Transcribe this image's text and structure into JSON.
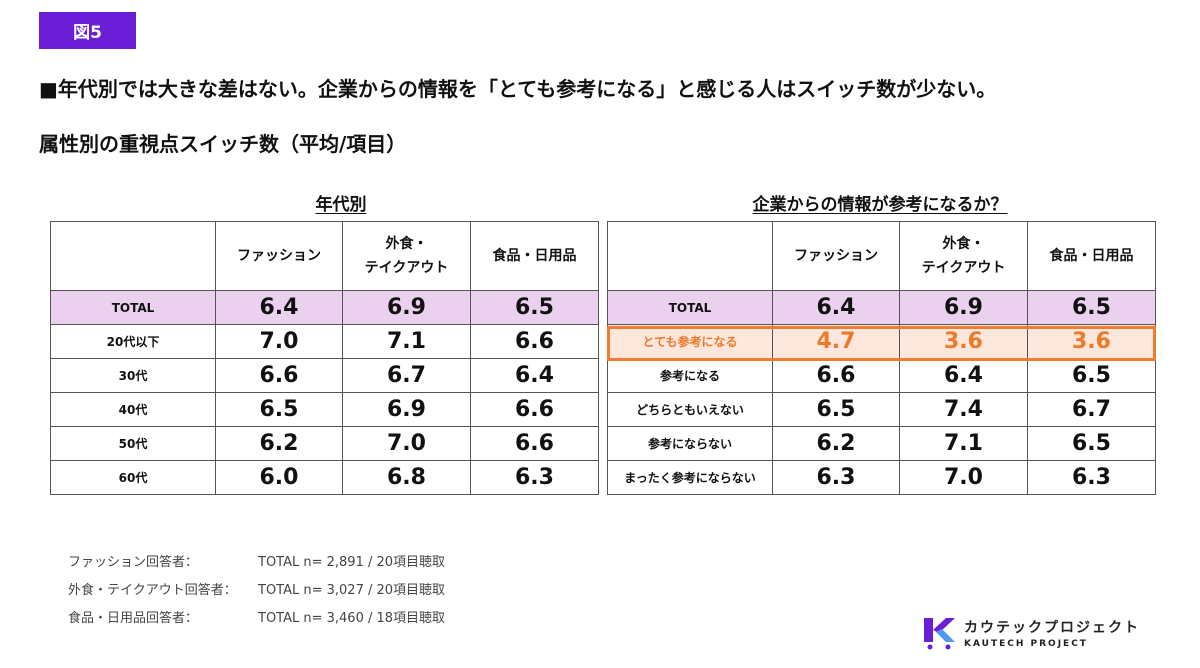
{
  "figure_label": "図5",
  "headline": "■年代別では大きな差はない。企業からの情報を「とても参考になる」と感じる人はスイッチ数が少ない。",
  "subtitle": "属性別の重視点スイッチ数（平均/項目）",
  "age_table": {
    "title": "年代別",
    "columns": [
      "",
      "ファッション",
      "外食・\nテイクアウト",
      "食品・日用品"
    ],
    "rows": [
      {
        "label": "TOTAL",
        "values": [
          "6.4",
          "6.9",
          "6.5"
        ]
      },
      {
        "label": "20代以下",
        "values": [
          "7.0",
          "7.1",
          "6.6"
        ]
      },
      {
        "label": "30代",
        "values": [
          "6.6",
          "6.7",
          "6.4"
        ]
      },
      {
        "label": "40代",
        "values": [
          "6.5",
          "6.9",
          "6.6"
        ]
      },
      {
        "label": "50代",
        "values": [
          "6.2",
          "7.0",
          "6.6"
        ]
      },
      {
        "label": "60代",
        "values": [
          "6.0",
          "6.8",
          "6.3"
        ]
      }
    ]
  },
  "info_table": {
    "title": "企業からの情報が参考になるか？",
    "columns": [
      "",
      "ファッション",
      "外食・\nテイクアウト",
      "食品・日用品"
    ],
    "rows": [
      {
        "label": "TOTAL",
        "values": [
          "6.4",
          "6.9",
          "6.5"
        ]
      },
      {
        "label": "とても参考になる",
        "values": [
          "4.7",
          "3.6",
          "3.6"
        ]
      },
      {
        "label": "参考になる",
        "values": [
          "6.6",
          "6.4",
          "6.5"
        ]
      },
      {
        "label": "どちらともいえない",
        "values": [
          "6.5",
          "7.4",
          "6.7"
        ]
      },
      {
        "label": "参考にならない",
        "values": [
          "6.2",
          "7.1",
          "6.5"
        ]
      },
      {
        "label": "まったく参考にならない",
        "values": [
          "6.3",
          "7.0",
          "6.3"
        ]
      }
    ]
  },
  "notes": [
    {
      "label": "ファッション回答者：",
      "value": "TOTAL n= 2,891 / 20項目聴取"
    },
    {
      "label": "外食・テイクアウト回答者：",
      "value": "TOTAL n= 3,027 / 20項目聴取"
    },
    {
      "label": "食品・日用品回答者：",
      "value": "TOTAL n= 3,460 / 18項目聴取"
    }
  ],
  "logo": {
    "name": "カウテックプロジェクト",
    "sub": "KAUTECH PROJECT"
  },
  "colors": {
    "badge": "#6a1fd6",
    "total_row": "#ecd0ef",
    "highlight_fill": "#fde7dd",
    "highlight_text": "#ec7a2a",
    "highlight_border": "#ed7d31",
    "logo": "#6a1fd6"
  }
}
